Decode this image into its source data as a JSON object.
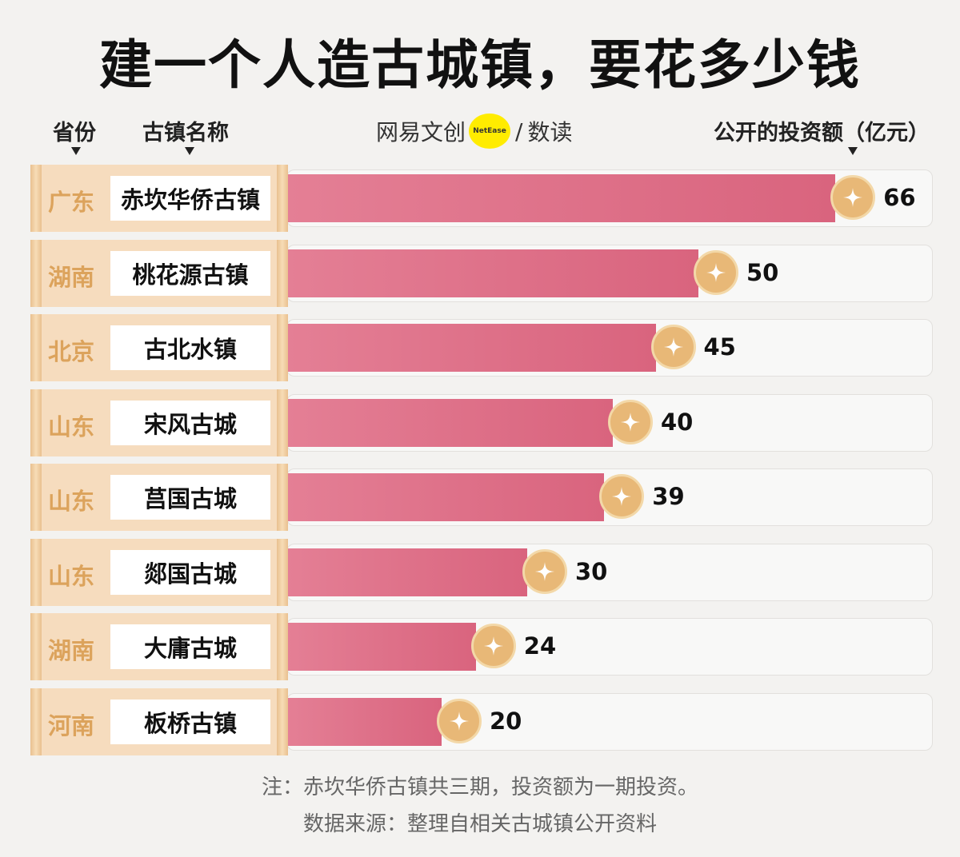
{
  "title": "建一个人造古城镇，要花多少钱",
  "headers": {
    "province": "省份",
    "town": "古镇名称",
    "value": "公开的投资额（亿元）"
  },
  "logo": {
    "brand": "网易文创",
    "badge": "NetEase",
    "sep": "/",
    "sub": "数读"
  },
  "chart_data": {
    "type": "bar",
    "orientation": "horizontal",
    "ylabel": "公开的投资额（亿元）",
    "categories": [
      "赤坎华侨古镇",
      "桃花源古镇",
      "古北水镇",
      "宋风古城",
      "莒国古城",
      "郯国古城",
      "大庸古城",
      "板桥古镇"
    ],
    "provinces": [
      "广东",
      "湖南",
      "北京",
      "山东",
      "山东",
      "山东",
      "湖南",
      "河南"
    ],
    "values": [
      66,
      50,
      45,
      40,
      39,
      30,
      24,
      20
    ],
    "bar_color": "#d9647e",
    "coin_color": "#e8b877"
  },
  "notes": [
    "注：赤坎华侨古镇共三期，投资额为一期投资。",
    "数据来源：整理自相关古城镇公开资料"
  ]
}
